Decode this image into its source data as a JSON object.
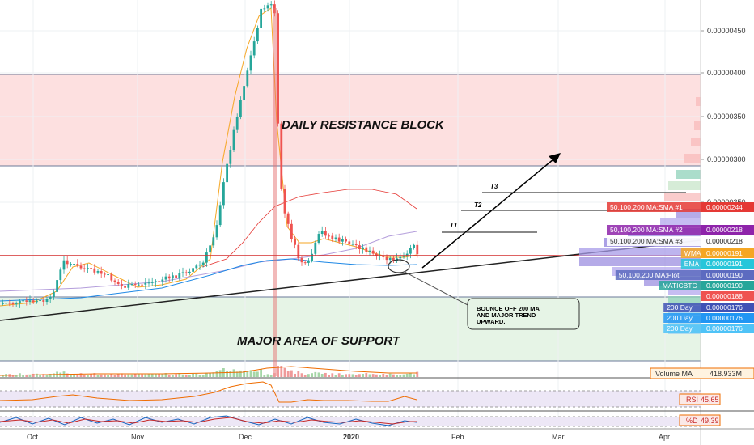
{
  "chart_data": {
    "type": "candlestick",
    "symbol": "MATICBTC",
    "x_ticks": [
      "Oct",
      "Nov",
      "Dec",
      "2020",
      "Feb",
      "Mar",
      "Apr"
    ],
    "y_ticks": [
      "0.00000450",
      "0.00000400",
      "0.00000350",
      "0.00000300",
      "0.00000250"
    ],
    "price_labels": [
      {
        "text": "50,100,200 MA:SMA #1",
        "value": "0.00000244",
        "color": "#e53935"
      },
      {
        "text": "50,100,200 MA:SMA #2",
        "value": "0.00000218",
        "color": "#8e24aa"
      },
      {
        "text": "50,100,200 MA:SMA #3",
        "value": "0.00000218",
        "color": "#ffffff"
      },
      {
        "text": "WMA",
        "value": "0.00000191",
        "color": "#f5a623"
      },
      {
        "text": "EMA",
        "value": "0.00000191",
        "color": "#26c6da"
      },
      {
        "text": "50,100,200 MA:Plot",
        "value": "0.00000190",
        "color": "#5c6bc0"
      },
      {
        "text": "MATICBTC",
        "value": "0.00000190",
        "color": "#26a69a"
      },
      {
        "text": "",
        "value": "0.00000188",
        "color": "#ef5350"
      },
      {
        "text": "200 Day",
        "value": "0.00000176",
        "color": "#3f51b5"
      },
      {
        "text": "200 Day",
        "value": "0.00000176",
        "color": "#2196f3"
      },
      {
        "text": "200 Day",
        "value": "0.00000176",
        "color": "#4fc3f7"
      }
    ],
    "annotations": {
      "resistance": "DAILY RESISTANCE BLOCK",
      "support": "MAJOR AREA OF SUPPORT",
      "t1": "T1",
      "t2": "T2",
      "t3": "T3",
      "callout": [
        "BOUNCE OFF 200 MA",
        "AND MAJOR TREND",
        "UPWARD."
      ]
    },
    "volume_label": "Volume MA",
    "volume_value": "418.933M",
    "rsi_label": "RSI",
    "rsi_value": "45.65",
    "stoch_label": "%D",
    "stoch_value": "49.39",
    "colors": {
      "up": "#26a69a",
      "down": "#ef5350",
      "resistance_fill": "#fde0e0",
      "support_fill": "#e6f4e6"
    }
  }
}
